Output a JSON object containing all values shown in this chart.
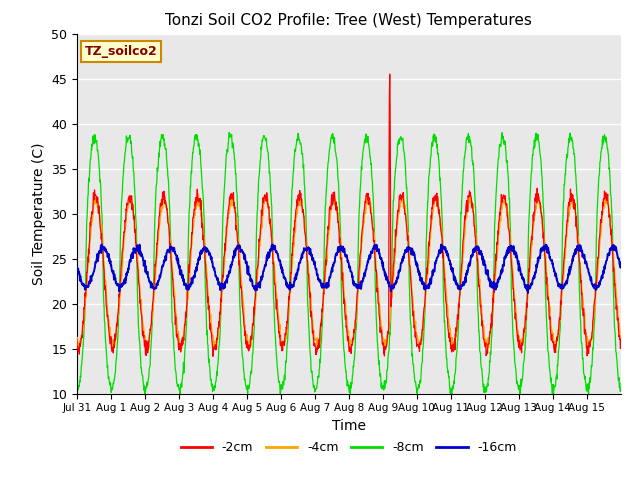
{
  "title": "Tonzi Soil CO2 Profile: Tree (West) Temperatures",
  "xlabel": "Time",
  "ylabel": "Soil Temperature (C)",
  "ylim": [
    10,
    50
  ],
  "n_days": 16,
  "background_color": "#e8e8e8",
  "colors": {
    "-2cm": "#ff0000",
    "-4cm": "#ffa500",
    "-8cm": "#00dd00",
    "-16cm": "#0000cc"
  },
  "legend_entries": [
    "-2cm",
    "-4cm",
    "-8cm",
    "-16cm"
  ],
  "xtick_labels": [
    "Jul 31",
    "Aug 1",
    "Aug 2",
    "Aug 3",
    "Aug 4",
    "Aug 5",
    "Aug 6",
    "Aug 7",
    "Aug 8",
    "Aug 9",
    "Aug 10",
    "Aug 11",
    "Aug 12",
    "Aug 13",
    "Aug 14",
    "Aug 15"
  ],
  "annotation_label": "TZ_soilco2",
  "annotation_bg": "#ffffcc",
  "annotation_fg": "#880000",
  "annotation_edge": "#cc8800"
}
